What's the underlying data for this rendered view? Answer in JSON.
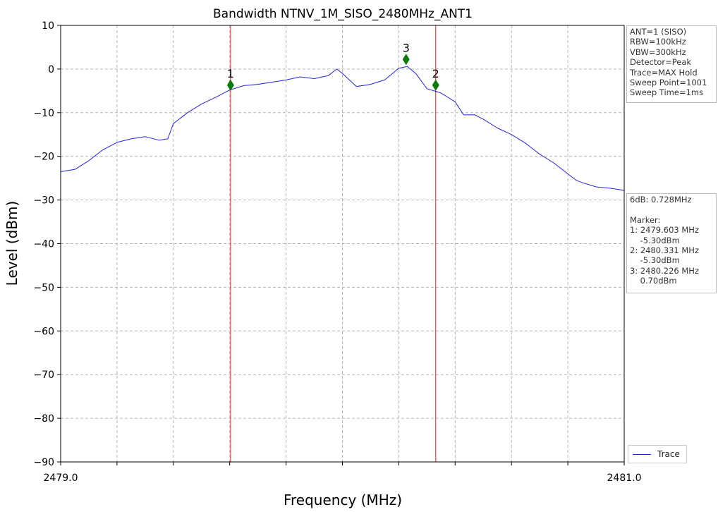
{
  "chart_data": {
    "type": "line",
    "title": "Bandwidth NTNV_1M_SISO_2480MHz_ANT1",
    "xlabel": "Frequency (MHz)",
    "ylabel": "Level (dBm)",
    "xlim": [
      2479.0,
      2481.0
    ],
    "ylim": [
      -90,
      10
    ],
    "x_tick_labels": [
      "2479.0",
      "2481.0"
    ],
    "y_ticks": [
      10,
      0,
      -10,
      -20,
      -30,
      -40,
      -50,
      -60,
      -70,
      -80,
      -90
    ],
    "grid": true,
    "legend_placement": "bottom-right",
    "series": [
      {
        "name": "Trace",
        "color": "#2222dd",
        "x": [
          2479.0,
          2479.05,
          2479.1,
          2479.15,
          2479.2,
          2479.25,
          2479.3,
          2479.35,
          2479.38,
          2479.4,
          2479.45,
          2479.5,
          2479.55,
          2479.6,
          2479.65,
          2479.7,
          2479.75,
          2479.8,
          2479.85,
          2479.9,
          2479.95,
          2479.98,
          2480.0,
          2480.05,
          2480.1,
          2480.15,
          2480.2,
          2480.23,
          2480.26,
          2480.3,
          2480.35,
          2480.4,
          2480.43,
          2480.47,
          2480.5,
          2480.55,
          2480.6,
          2480.65,
          2480.7,
          2480.75,
          2480.8,
          2480.83,
          2480.85,
          2480.9,
          2480.95,
          2481.0
        ],
        "y": [
          -23.5,
          -23.0,
          -21.0,
          -18.5,
          -16.8,
          -16.0,
          -15.5,
          -16.3,
          -16.0,
          -12.5,
          -10.0,
          -8.0,
          -6.5,
          -4.8,
          -3.8,
          -3.5,
          -3.0,
          -2.5,
          -1.8,
          -2.2,
          -1.5,
          0.0,
          -1.0,
          -4.0,
          -3.5,
          -2.5,
          0.2,
          0.6,
          -1.0,
          -4.5,
          -5.5,
          -7.5,
          -10.5,
          -10.5,
          -11.5,
          -13.5,
          -15.0,
          -17.0,
          -19.5,
          -21.5,
          -24.0,
          -25.5,
          -26.0,
          -27.0,
          -27.3,
          -27.8
        ]
      }
    ],
    "markers": [
      {
        "label": "1",
        "x": 2479.603,
        "y": -3.7,
        "color": "#0a7a0a"
      },
      {
        "label": "2",
        "x": 2480.331,
        "y": -3.7,
        "color": "#0a7a0a"
      },
      {
        "label": "3",
        "x": 2480.226,
        "y": 2.2,
        "color": "#0a7a0a"
      }
    ],
    "vertical_lines": [
      {
        "x": 2479.603,
        "color": "#d9534f"
      },
      {
        "x": 2480.331,
        "color": "#d9534f"
      }
    ]
  },
  "settings_box": {
    "lines": [
      "ANT=1 (SISO)",
      "RBW=100kHz",
      "VBW=300kHz",
      "Detector=Peak",
      "Trace=MAX Hold",
      "Sweep Point=1001",
      "Sweep Time=1ms"
    ]
  },
  "marker_box": {
    "lines": [
      "6dB: 0.728MHz",
      "",
      "Marker:",
      "1: 2479.603 MHz",
      "    -5.30dBm",
      "2: 2480.331 MHz",
      "    -5.30dBm",
      "3: 2480.226 MHz",
      "    0.70dBm"
    ]
  },
  "legend": {
    "label": "Trace"
  }
}
